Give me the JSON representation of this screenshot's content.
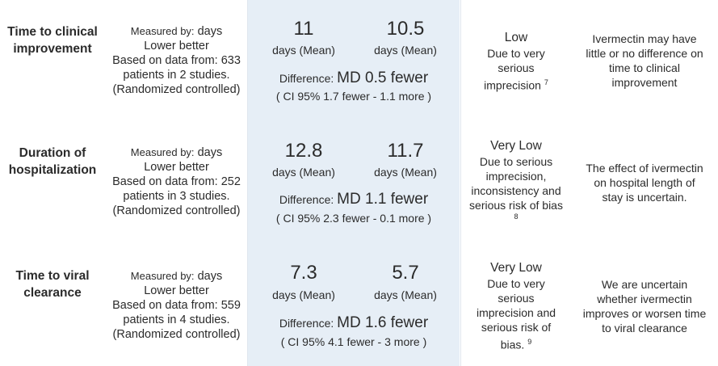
{
  "rows": [
    {
      "outcome": [
        "Time to clinical",
        "improvement"
      ],
      "measured_by_label": "Measured by:",
      "measured_by_value": "days",
      "direction": "Lower better",
      "based_on": [
        "Based on data from: 633",
        "patients in 2 studies.",
        "(Randomized controlled)"
      ],
      "comparator_value": "11",
      "comparator_unit": "days (Mean)",
      "intervention_value": "10.5",
      "intervention_unit": "days (Mean)",
      "difference_label": "Difference:",
      "difference_value": "MD 0.5 fewer",
      "ci": "( CI 95% 1.7 fewer - 1.1 more )",
      "certainty_level": "Low",
      "certainty_reason": [
        "Due to very",
        "serious",
        "imprecision"
      ],
      "footnote": "7",
      "summary": [
        "Ivermectin may have",
        "little or no difference on",
        "time to clinical",
        "improvement"
      ]
    },
    {
      "outcome": [
        "Duration of",
        "hospitalization"
      ],
      "measured_by_label": "Measured by:",
      "measured_by_value": "days",
      "direction": "Lower better",
      "based_on": [
        "Based on data from: 252",
        "patients in 3 studies.",
        "(Randomized controlled)"
      ],
      "comparator_value": "12.8",
      "comparator_unit": "days (Mean)",
      "intervention_value": "11.7",
      "intervention_unit": "days (Mean)",
      "difference_label": "Difference:",
      "difference_value": "MD 1.1 fewer",
      "ci": "( CI 95% 2.3 fewer - 0.1 more )",
      "certainty_level": "Very Low",
      "certainty_reason": [
        "Due to serious",
        "imprecision,",
        "inconsistency and",
        "serious risk of bias"
      ],
      "footnote": "8",
      "summary": [
        "The effect of ivermectin",
        "on hospital length of",
        "stay is uncertain."
      ]
    },
    {
      "outcome": [
        "Time to viral",
        "clearance"
      ],
      "measured_by_label": "Measured by:",
      "measured_by_value": "days",
      "direction": "Lower better",
      "based_on": [
        "Based on data from: 559",
        "patients in 4 studies.",
        "(Randomized controlled)"
      ],
      "comparator_value": "7.3",
      "comparator_unit": "days (Mean)",
      "intervention_value": "5.7",
      "intervention_unit": "days (Mean)",
      "difference_label": "Difference:",
      "difference_value": "MD 1.6 fewer",
      "ci": "( CI 95% 4.1 fewer - 3 more )",
      "certainty_level": "Very Low",
      "certainty_reason": [
        "Due to very",
        "serious",
        "imprecision and",
        "serious risk of",
        "bias."
      ],
      "footnote": "9",
      "summary": [
        "We are uncertain",
        "whether ivermectin",
        "improves or worsen time",
        "to viral clearance"
      ]
    }
  ]
}
